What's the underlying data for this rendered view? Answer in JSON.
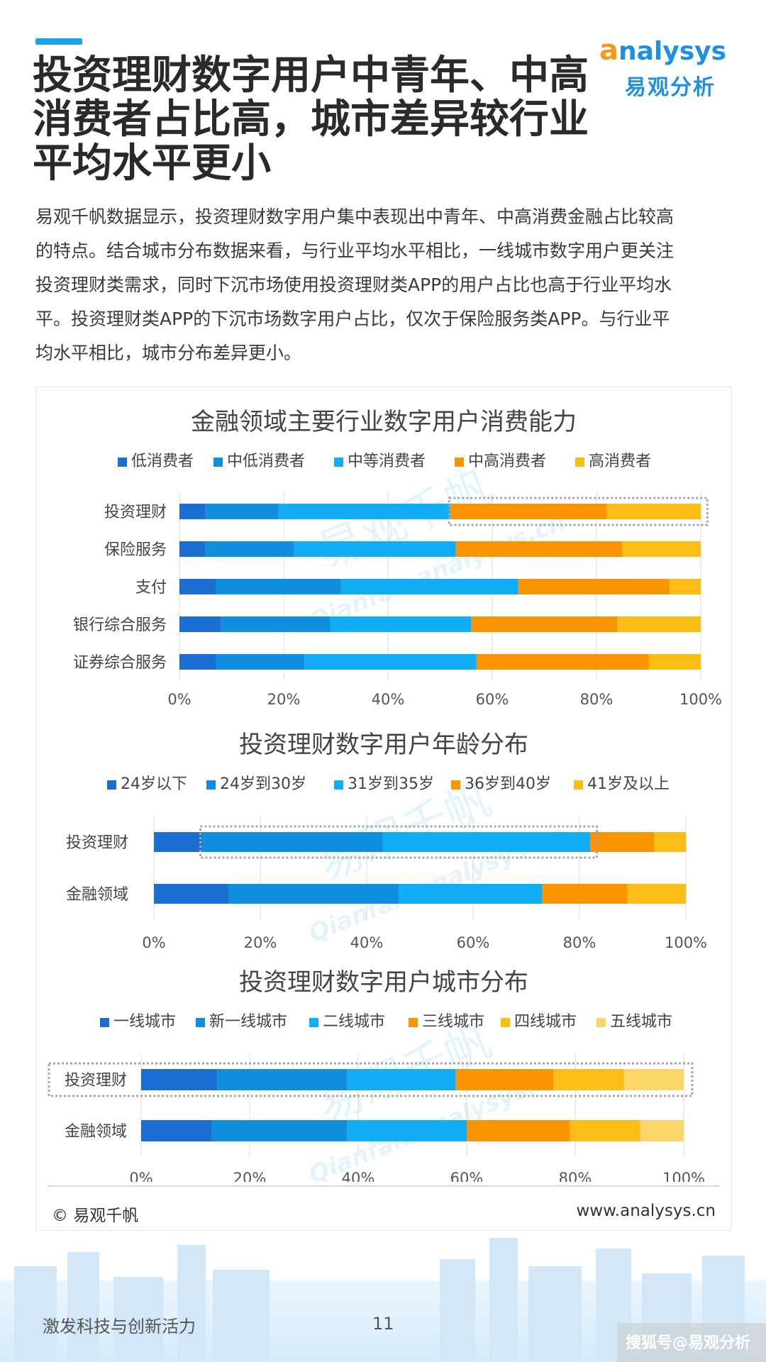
{
  "header": {
    "title_lines": [
      "投资理财数字用户中青年、中高",
      "消费者占比高，城市差异较行业",
      "平均水平更小"
    ],
    "logo_en": "nalysys",
    "logo_en_first": "a",
    "logo_cn": "易观分析"
  },
  "description_lines": [
    "易观千帆数据显示，投资理财数字用户集中表现出中青年、中高消费金融占比较高",
    "的特点。结合城市分布数据来看，与行业平均水平相比，一线城市数字用户更关注",
    "投资理财类需求，同时下沉市场使用投资理财类APP的用户占比也高于行业平均水",
    "平。投资理财类APP的下沉市场数字用户占比，仅次于保险服务类APP。与行业平",
    "均水平相比，城市分布差异更小。"
  ],
  "watermark": {
    "cn": "易观千帆",
    "en": "Qianfan.analysys.cn"
  },
  "chart_data": [
    {
      "type": "bar",
      "orientation": "horizontal",
      "stacked": true,
      "title": "金融领域主要行业数字用户消费能力",
      "categories": [
        "投资理财",
        "保险服务",
        "支付",
        "银行综合服务",
        "证券综合服务"
      ],
      "series": [
        {
          "name": "低消费者",
          "color": "#1c6fd2",
          "values": [
            5,
            5,
            7,
            8,
            7
          ]
        },
        {
          "name": "中低消费者",
          "color": "#0f8fdd",
          "values": [
            14,
            17,
            24,
            21,
            17
          ]
        },
        {
          "name": "中等消费者",
          "color": "#12aef5",
          "values": [
            33,
            31,
            34,
            27,
            33
          ]
        },
        {
          "name": "中高消费者",
          "color": "#fa9400",
          "values": [
            30,
            32,
            29,
            28,
            33
          ]
        },
        {
          "name": "高消费者",
          "color": "#fcbd16",
          "values": [
            18,
            15,
            6,
            16,
            10
          ]
        }
      ],
      "xlim": [
        0,
        100
      ],
      "xticks": [
        "0%",
        "20%",
        "40%",
        "60%",
        "80%",
        "100%"
      ],
      "legend": "top",
      "highlight": {
        "category": "投资理财",
        "from": 52,
        "to": 101
      }
    },
    {
      "type": "bar",
      "orientation": "horizontal",
      "stacked": true,
      "title": "投资理财数字用户年龄分布",
      "categories": [
        "投资理财",
        "金融领域"
      ],
      "series": [
        {
          "name": "24岁以下",
          "color": "#1c6fd2",
          "values": [
            9,
            14
          ]
        },
        {
          "name": "24岁到30岁",
          "color": "#0f8fdd",
          "values": [
            34,
            32
          ]
        },
        {
          "name": "31岁到35岁",
          "color": "#12aef5",
          "values": [
            39,
            27
          ]
        },
        {
          "name": "36岁到40岁",
          "color": "#fa9400",
          "values": [
            12,
            16
          ]
        },
        {
          "name": "41岁及以上",
          "color": "#fcbd16",
          "values": [
            6,
            11
          ]
        }
      ],
      "xlim": [
        0,
        100
      ],
      "xticks": [
        "0%",
        "20%",
        "40%",
        "60%",
        "80%",
        "100%"
      ],
      "legend": "top",
      "highlight": {
        "category": "投资理财",
        "from": 9,
        "to": 83
      }
    },
    {
      "type": "bar",
      "orientation": "horizontal",
      "stacked": true,
      "title": "投资理财数字用户城市分布",
      "categories": [
        "投资理财",
        "金融领域"
      ],
      "series": [
        {
          "name": "一线城市",
          "color": "#1c6fd2",
          "values": [
            14,
            13
          ]
        },
        {
          "name": "新一线城市",
          "color": "#0f8fdd",
          "values": [
            24,
            25
          ]
        },
        {
          "name": "二线城市",
          "color": "#12aef5",
          "values": [
            20,
            22
          ]
        },
        {
          "name": "三线城市",
          "color": "#fa9400",
          "values": [
            18,
            19
          ]
        },
        {
          "name": "四线城市",
          "color": "#fcbd16",
          "values": [
            13,
            13
          ]
        },
        {
          "name": "五线城市",
          "color": "#fdd66b",
          "values": [
            11,
            8
          ]
        }
      ],
      "xlim": [
        0,
        100
      ],
      "xticks": [
        "0%",
        "20%",
        "40%",
        "60%",
        "80%",
        "100%"
      ],
      "legend": "top",
      "highlight": {
        "category": "投资理财",
        "whole_row": true
      }
    }
  ],
  "card_footer": {
    "copyright": "© 易观千帆",
    "website": "www.analysys.cn"
  },
  "page_footer": {
    "slogan": "激发科技与创新活力",
    "page_number": "11",
    "source": "搜狐号@易观分析"
  }
}
